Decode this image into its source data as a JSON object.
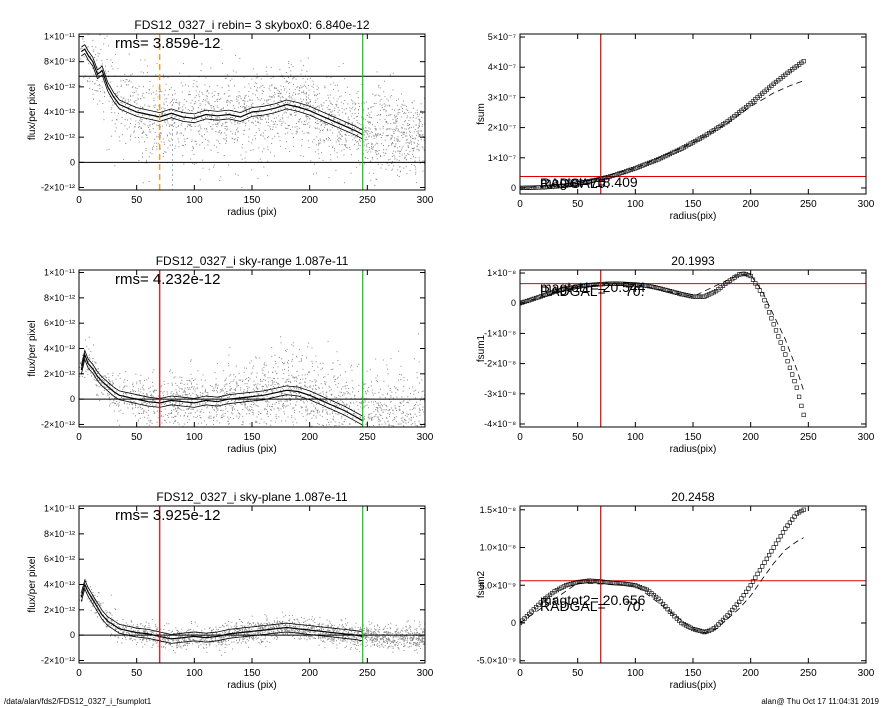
{
  "footer": {
    "left": "/data/alan/fds2/FDS12_0327_i_fsumplot1",
    "right": "alan@  Thu Oct 17 11:04:31 2019"
  },
  "colors": {
    "vline_red": "#e00000",
    "vline_green": "#00cc00",
    "vline_orange": "#ff8800",
    "hline_red": "#e00000",
    "scatter": "#8a8a8a"
  },
  "chart_data": [
    {
      "id": "p1",
      "type": "scatter",
      "title": "FDS12_0327_i rebin= 3    skybox0:  6.840e-12",
      "xlabel": "radius (pix)",
      "ylabel": "flux/per pixel",
      "xlim": [
        0,
        300
      ],
      "ylim": [
        -2.2e-12,
        1.02e-11
      ],
      "xticks": [
        0,
        50,
        100,
        150,
        200,
        250,
        300
      ],
      "yticks": [
        -2e-12,
        0,
        2e-12,
        4e-12,
        6e-12,
        8e-12,
        1e-11
      ],
      "ytick_labels": [
        "-2×10⁻¹²",
        "0",
        "2×10⁻¹²",
        "4×10⁻¹²",
        "6×10⁻¹²",
        "8×10⁻¹²",
        "1×10⁻¹¹"
      ],
      "annotation": "rms= 3.859e-12",
      "hlines": [
        6.84e-12,
        0
      ],
      "vlines": [
        {
          "x": 70,
          "color": "orange",
          "style": "dashed"
        },
        {
          "x": 246,
          "color": "green",
          "style": "solid"
        }
      ],
      "profile": {
        "x": [
          2,
          5,
          8,
          12,
          16,
          20,
          25,
          30,
          35,
          40,
          45,
          50,
          60,
          70,
          80,
          90,
          100,
          110,
          120,
          130,
          140,
          150,
          160,
          170,
          180,
          190,
          200,
          210,
          220,
          230,
          240,
          246
        ],
        "y": [
          8.8e-12,
          9e-12,
          8.5e-12,
          8e-12,
          7e-12,
          7.3e-12,
          6e-12,
          5.2e-12,
          4.6e-12,
          4.4e-12,
          4.2e-12,
          4e-12,
          3.8e-12,
          3.6e-12,
          3.9e-12,
          3.6e-12,
          3.5e-12,
          3.8e-12,
          3.7e-12,
          3.8e-12,
          3.6e-12,
          4e-12,
          4.1e-12,
          4.3e-12,
          4.6e-12,
          4.4e-12,
          4.1e-12,
          3.7e-12,
          3.3e-12,
          2.9e-12,
          2.5e-12,
          2.2e-12
        ]
      },
      "band": 3.5e-13,
      "scatter_spread": {
        "sigma": 3.9e-12,
        "trend": "decreasing",
        "count": 2200
      }
    },
    {
      "id": "p2",
      "type": "scatter",
      "title": "",
      "xlabel": "radius(pix)",
      "ylabel": "fsum",
      "xlim": [
        0,
        300
      ],
      "ylim": [
        -2e-08,
        5.1e-07
      ],
      "xticks": [
        0,
        50,
        100,
        150,
        200,
        250,
        300
      ],
      "yticks": [
        0,
        1e-07,
        2e-07,
        3e-07,
        4e-07,
        5e-07
      ],
      "ytick_labels": [
        "0",
        "1×10⁻⁷",
        "2×10⁻⁷",
        "3×10⁻⁷",
        "4×10⁻⁷",
        "5×10⁻⁷"
      ],
      "text_labels": [
        "RADGAL=",
        "magtot= 18.409",
        "70."
      ],
      "hlines": [
        3.8e-08
      ],
      "vlines": [
        {
          "x": 70,
          "color": "red",
          "style": "solid"
        }
      ],
      "series_points": {
        "x": [
          0,
          20,
          40,
          60,
          70,
          80,
          100,
          120,
          140,
          160,
          180,
          200,
          220,
          235,
          246
        ],
        "y": [
          0,
          2e-09,
          8e-09,
          2.2e-08,
          3e-08,
          4e-08,
          6.5e-08,
          9.5e-08,
          1.3e-07,
          1.72e-07,
          2.2e-07,
          2.8e-07,
          3.45e-07,
          3.9e-07,
          4.2e-07
        ]
      },
      "dashed_curve": {
        "x": [
          0,
          50,
          100,
          150,
          180,
          200,
          220,
          235,
          246
        ],
        "y": [
          0,
          1.5e-08,
          6.5e-08,
          1.5e-07,
          2.15e-07,
          2.7e-07,
          3.15e-07,
          3.4e-07,
          3.55e-07
        ]
      }
    },
    {
      "id": "p3",
      "type": "scatter",
      "title": "FDS12_0327_i sky-range  1.087e-11",
      "xlabel": "radius (pix)",
      "ylabel": "flux/per pixel",
      "xlim": [
        0,
        300
      ],
      "ylim": [
        -2.2e-12,
        1.02e-11
      ],
      "xticks": [
        0,
        50,
        100,
        150,
        200,
        250,
        300
      ],
      "yticks": [
        -2e-12,
        0,
        2e-12,
        4e-12,
        6e-12,
        8e-12,
        1e-11
      ],
      "ytick_labels": [
        "-2×10⁻¹²",
        "0",
        "2×10⁻¹²",
        "4×10⁻¹²",
        "6×10⁻¹²",
        "8×10⁻¹²",
        "1×10⁻¹¹"
      ],
      "annotation": "rms= 4.232e-12",
      "hlines": [
        0
      ],
      "vlines": [
        {
          "x": 70,
          "color": "red",
          "style": "solid"
        },
        {
          "x": 246,
          "color": "green",
          "style": "solid"
        }
      ],
      "profile": {
        "x": [
          2,
          5,
          8,
          12,
          16,
          20,
          25,
          30,
          35,
          40,
          45,
          50,
          60,
          70,
          80,
          90,
          100,
          110,
          120,
          130,
          140,
          150,
          160,
          170,
          180,
          190,
          200,
          210,
          220,
          230,
          240,
          246
        ],
        "y": [
          2.3e-12,
          3.5e-12,
          2.8e-12,
          2.4e-12,
          1.8e-12,
          1.4e-12,
          1e-12,
          6e-13,
          3e-13,
          2e-13,
          1e-13,
          0,
          -2e-13,
          -3e-13,
          -1e-13,
          -2e-13,
          -3e-13,
          -1e-13,
          -2e-13,
          0,
          1e-13,
          2e-13,
          3e-13,
          5e-13,
          7e-13,
          6e-13,
          3e-13,
          -1e-13,
          -5e-13,
          -9e-13,
          -1.4e-12,
          -1.7e-12
        ]
      },
      "band": 3.5e-13,
      "scatter_spread": {
        "sigma": 2.7e-12,
        "trend": "flat",
        "count": 2200
      }
    },
    {
      "id": "p4",
      "type": "scatter",
      "title": "20.1993",
      "xlabel": "radius(pix)",
      "ylabel": "fsum1",
      "xlim": [
        0,
        300
      ],
      "ylim": [
        -4.1e-08,
        1.1e-08
      ],
      "xticks": [
        0,
        50,
        100,
        150,
        200,
        250,
        300
      ],
      "yticks": [
        -4e-08,
        -3e-08,
        -2e-08,
        -1e-08,
        0,
        1e-08
      ],
      "ytick_labels": [
        "-4×10⁻⁸",
        "-3×10⁻⁸",
        "-2×10⁻⁸",
        "-1×10⁻⁸",
        "0",
        "1×10⁻⁸"
      ],
      "text_labels": [
        "RADGAL=",
        "magtot1= 20.544",
        "70."
      ],
      "hlines": [
        6.5e-09
      ],
      "vlines": [
        {
          "x": 70,
          "color": "red",
          "style": "solid"
        }
      ],
      "series_points": {
        "x": [
          0,
          10,
          20,
          30,
          40,
          50,
          60,
          70,
          80,
          90,
          100,
          110,
          120,
          130,
          140,
          150,
          160,
          170,
          180,
          190,
          195,
          200,
          210,
          220,
          230,
          240,
          246
        ],
        "y": [
          0,
          1.2e-09,
          2.5e-09,
          3.8e-09,
          4.8e-09,
          5.5e-09,
          6e-09,
          6.3e-09,
          6.5e-09,
          6.4e-09,
          6.2e-09,
          5.8e-09,
          5e-09,
          4e-09,
          3e-09,
          2.2e-09,
          2.2e-09,
          4e-09,
          7e-09,
          9.5e-09,
          9.8e-09,
          9e-09,
          3e-09,
          -7e-09,
          -1.7e-08,
          -2.8e-08,
          -3.7e-08
        ]
      },
      "dashed_curve": {
        "x": [
          0,
          50,
          100,
          150,
          190,
          200,
          210,
          220,
          230,
          240,
          246
        ],
        "y": [
          0,
          5.5e-09,
          6.2e-09,
          2.2e-09,
          9.5e-09,
          9.3e-09,
          4e-09,
          -4e-09,
          -1.2e-08,
          -2.2e-08,
          -2.9e-08
        ]
      }
    },
    {
      "id": "p5",
      "type": "scatter",
      "title": "FDS12_0327_i sky-plane  1.087e-11",
      "xlabel": "radius (pix)",
      "ylabel": "flux/per pixel",
      "xlim": [
        0,
        300
      ],
      "ylim": [
        -2.2e-12,
        1.02e-11
      ],
      "xticks": [
        0,
        50,
        100,
        150,
        200,
        250,
        300
      ],
      "yticks": [
        -2e-12,
        0,
        2e-12,
        4e-12,
        6e-12,
        8e-12,
        1e-11
      ],
      "ytick_labels": [
        "-2×10⁻¹²",
        "0",
        "2×10⁻¹²",
        "4×10⁻¹²",
        "6×10⁻¹²",
        "8×10⁻¹²",
        "1×10⁻¹¹"
      ],
      "annotation": "rms= 3.925e-12",
      "hlines": [
        0
      ],
      "vlines": [
        {
          "x": 70,
          "color": "red",
          "style": "solid"
        },
        {
          "x": 246,
          "color": "green",
          "style": "solid"
        }
      ],
      "profile": {
        "x": [
          2,
          5,
          8,
          12,
          16,
          20,
          25,
          30,
          35,
          40,
          45,
          50,
          60,
          70,
          80,
          90,
          100,
          110,
          120,
          130,
          140,
          150,
          160,
          170,
          180,
          190,
          200,
          210,
          220,
          230,
          240,
          246
        ],
        "y": [
          3e-12,
          4e-12,
          3.4e-12,
          2.8e-12,
          2.2e-12,
          1.6e-12,
          1.1e-12,
          8e-13,
          5e-13,
          4e-13,
          3e-13,
          2e-13,
          1e-13,
          -1e-13,
          -3e-13,
          -2e-13,
          -1e-13,
          -2e-13,
          -1e-13,
          1e-13,
          2e-13,
          3e-13,
          4e-13,
          5e-13,
          6e-13,
          5e-13,
          4e-13,
          3e-13,
          2e-13,
          1e-13,
          0,
          -1e-13
        ]
      },
      "band": 3.5e-13,
      "scatter_spread": {
        "sigma": 1e-12,
        "trend": "flat",
        "count": 2200
      }
    },
    {
      "id": "p6",
      "type": "scatter",
      "title": "20.2458",
      "xlabel": "radius(pix)",
      "ylabel": "fsum2",
      "xlim": [
        0,
        300
      ],
      "ylim": [
        -5.3e-09,
        1.55e-08
      ],
      "xticks": [
        0,
        50,
        100,
        150,
        200,
        250,
        300
      ],
      "yticks": [
        -5e-09,
        0,
        5e-09,
        1e-08,
        1.5e-08
      ],
      "ytick_labels": [
        "-5.0×10⁻⁹",
        "0",
        "5.0×10⁻⁹",
        "1.0×10⁻⁸",
        "1.5×10⁻⁸"
      ],
      "text_labels": [
        "RADGAL=",
        "magtot2= 20.656",
        "70."
      ],
      "hlines": [
        5.6e-09
      ],
      "vlines": [
        {
          "x": 70,
          "color": "red",
          "style": "solid"
        }
      ],
      "series_points": {
        "x": [
          0,
          10,
          20,
          30,
          40,
          50,
          60,
          70,
          80,
          90,
          100,
          110,
          120,
          130,
          140,
          150,
          160,
          165,
          170,
          180,
          190,
          200,
          210,
          220,
          230,
          240,
          246
        ],
        "y": [
          0,
          1.5e-09,
          3e-09,
          4.2e-09,
          5e-09,
          5.4e-09,
          5.6e-09,
          5.5e-09,
          5.3e-09,
          5.2e-09,
          5e-09,
          4.4e-09,
          3.2e-09,
          1.5e-09,
          0,
          -8e-10,
          -1.2e-09,
          -1e-09,
          -5e-10,
          1e-09,
          2.8e-09,
          5e-09,
          7.5e-09,
          1e-08,
          1.25e-08,
          1.45e-08,
          1.5e-08
        ]
      },
      "dashed_curve": {
        "x": [
          0,
          50,
          100,
          150,
          160,
          170,
          190,
          200,
          210,
          220,
          230,
          240,
          246
        ],
        "y": [
          0,
          5.3e-09,
          5e-09,
          -8e-10,
          -1.3e-09,
          -8e-10,
          1.9e-09,
          3.6e-09,
          5.8e-09,
          7.9e-09,
          9.7e-09,
          1.08e-08,
          1.13e-08
        ]
      }
    }
  ]
}
